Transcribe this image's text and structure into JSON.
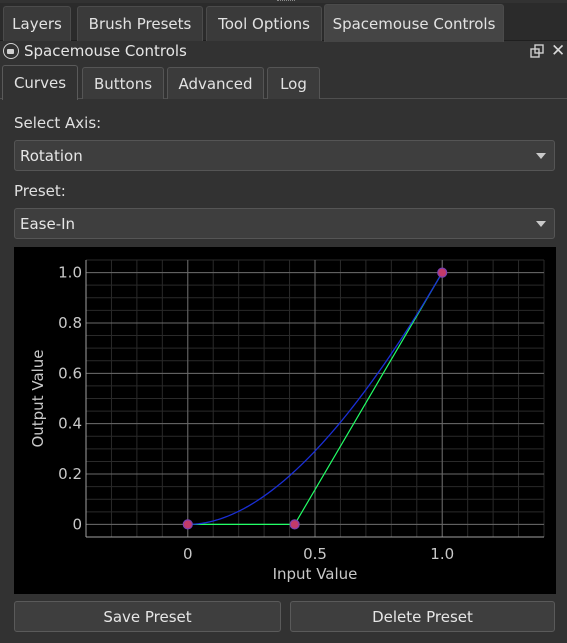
{
  "dock": {
    "tabs": [
      {
        "label": "Layers"
      },
      {
        "label": "Brush Presets"
      },
      {
        "label": "Tool Options"
      },
      {
        "label": "Spacemouse Controls"
      }
    ],
    "active_tab": "Spacemouse Controls"
  },
  "panel": {
    "title": "Spacemouse Controls",
    "float_icon": "float-window-icon",
    "close_icon": "close-icon",
    "close_glyph": "✕"
  },
  "sub_tabs": [
    {
      "label": "Curves"
    },
    {
      "label": "Buttons"
    },
    {
      "label": "Advanced"
    },
    {
      "label": "Log"
    }
  ],
  "active_sub_tab": "Curves",
  "axis": {
    "label": "Select Axis:",
    "value": "Rotation"
  },
  "preset": {
    "label": "Preset:",
    "value": "Ease-In"
  },
  "chart_data": {
    "type": "line",
    "xlabel": "Input Value",
    "ylabel": "Output Value",
    "x_ticks": [
      "0",
      "0.5",
      "1.0"
    ],
    "y_ticks": [
      "1.0",
      "0.8",
      "0.6",
      "0.4",
      "0.2",
      "0"
    ],
    "xlim": [
      -0.4,
      1.4
    ],
    "ylim": [
      -0.05,
      1.05
    ],
    "grid": true,
    "background": "#000000",
    "control_points": [
      {
        "x": 0,
        "y": 0
      },
      {
        "x": 0.42,
        "y": 0
      },
      {
        "x": 1.0,
        "y": 1.0
      }
    ],
    "series": [
      {
        "role": "control-polygon",
        "color": "#22ff66",
        "points": [
          [
            0,
            0
          ],
          [
            0.42,
            0
          ],
          [
            1.0,
            1.0
          ]
        ]
      },
      {
        "role": "curve",
        "color": "#1a2fd6"
      }
    ],
    "point_color": "#c23a6a"
  },
  "buttons": {
    "save": "Save Preset",
    "delete": "Delete Preset"
  }
}
